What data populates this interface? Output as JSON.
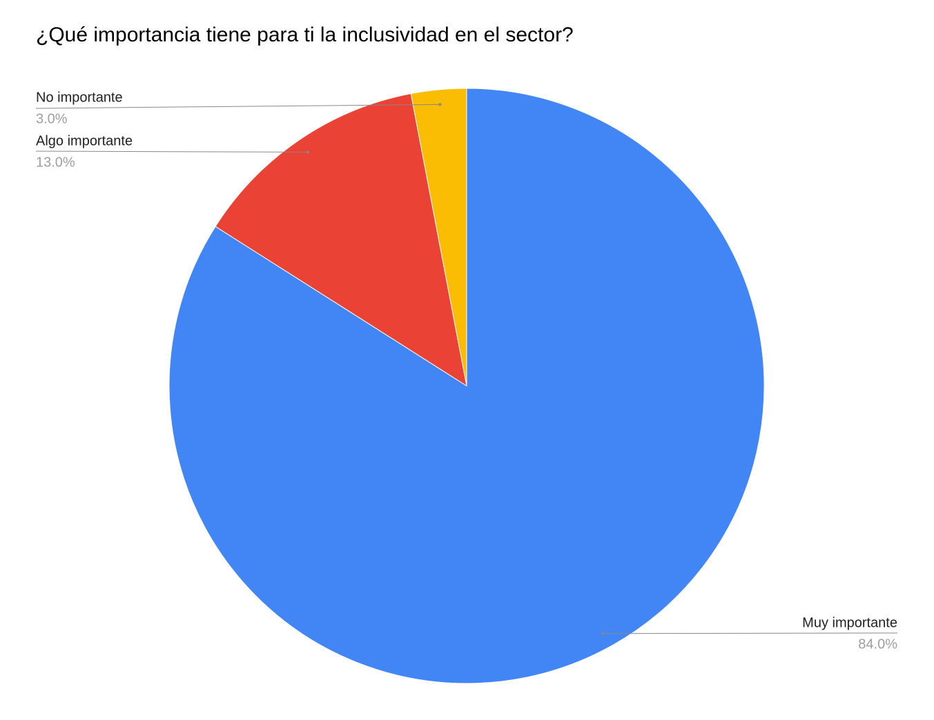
{
  "chart_data": {
    "type": "pie",
    "title": "¿Qué importancia tiene para ti la inclusividad en el sector?",
    "categories": [
      "Muy importante",
      "Algo importante",
      "No importante"
    ],
    "values": [
      84,
      13,
      3
    ],
    "value_labels": [
      "84.0%",
      "13.0%",
      "3.0%"
    ],
    "colors": [
      "#4285f4",
      "#ea4335",
      "#fbbc04"
    ]
  }
}
